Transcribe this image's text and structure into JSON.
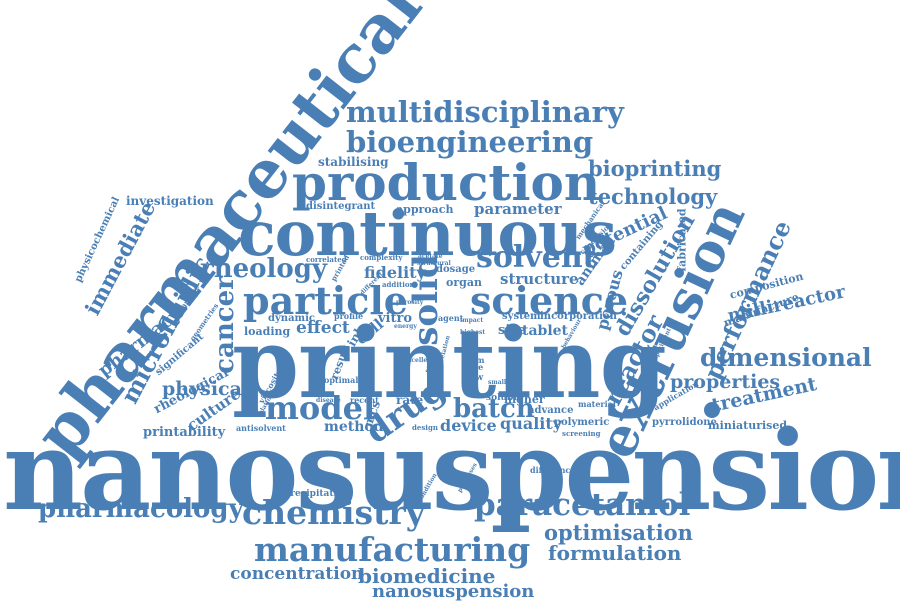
{
  "color": "#4a7fb5",
  "words": {
    "nanosuspensions": "nanosuspensions",
    "printing": "printing",
    "pharmaceutical": "pharmaceutical",
    "continuous": "continuous",
    "production": "production",
    "extrusion": "extrusion",
    "particle": "particle",
    "science": "science",
    "multidisciplinary": "multidisciplinary",
    "bioengineering": "bioengineering",
    "manufacturing": "manufacturing",
    "chemistry": "chemistry",
    "paracetamol": "paracetamol",
    "pharmacology": "pharmacology",
    "solid": "solid",
    "solvent": "solvent",
    "rheology": "rheology",
    "drug": "drug",
    "batch": "batch",
    "model": "model",
    "cancer": "cancer",
    "microfluidic": "microfluidic",
    "immediate": "immediate",
    "pharmacy": "pharmacy",
    "reactor": "reactor",
    "performance": "performance",
    "dissolution": "dissolution",
    "dimensional": "dimensional",
    "bioprinting": "bioprinting",
    "technology": "technology",
    "potential": "potential",
    "parameter": "parameter",
    "optimisation": "optimisation",
    "formulation": "formulation",
    "biomedicine": "biomedicine",
    "nanosuspension": "nanosuspension",
    "concentration": "concentration",
    "properties": "properties",
    "treatment": "treatment",
    "millireactor": "millireactor",
    "physical": "physical",
    "porous": "porous",
    "fidelity": "fidelity",
    "structure": "structure",
    "effect": "effect",
    "quality": "quality",
    "device": "device",
    "tablet": "tablet",
    "animal": "animal",
    "method": "method",
    "culture": "culture",
    "rheological": "rheological",
    "printability": "printability",
    "stabilising": "stabilising",
    "investigation": "investigation",
    "physicochemical": "physicochemical",
    "composition": "composition",
    "manufacture": "manufacture",
    "miniaturised": "miniaturised",
    "pyrrolidone": "pyrrolidone",
    "precipitation": "precipitation",
    "approach": "approach",
    "disintegrant": "disintegrant",
    "significant": "significant",
    "loading": "loading",
    "dynamic": "dynamic",
    "cell": "cell",
    "vitro": "vitro",
    "organ": "organ",
    "dosage": "dosage",
    "rate": "rate",
    "size": "size",
    "system": "system",
    "incorporation": "incorporation",
    "higher": "higher",
    "advance": "advance",
    "polymeric": "polymeric",
    "antisolvent": "antisolvent",
    "design": "design",
    "screening": "screening",
    "difference": "difference",
    "material": "material",
    "soluble": "soluble",
    "fabricated": "fabricated",
    "containing": "containing",
    "ink": "ink",
    "result": "result",
    "recent": "recent",
    "optimal": "optimal",
    "viscosity": "viscosity",
    "profile": "profile",
    "agent": "agent",
    "flow": "flow",
    "pore": "pore",
    "line": "line",
    "form": "form",
    "advantage": "advantage",
    "geometries": "geometries",
    "correlated": "correlated",
    "complexity": "complexity",
    "addition": "addition",
    "printed": "printed",
    "platform": "platform",
    "experiment": "experiment",
    "application": "application",
    "conclusion": "conclusion",
    "mechanical": "mechanical",
    "acetate": "acetate",
    "structural": "structural",
    "disease": "disease",
    "energy": "energy",
    "processes": "processes",
    "condition": "condition",
    "behaviour": "behaviour",
    "porosity": "porosity",
    "different": "different",
    "highest": "highest",
    "impact": "impact",
    "mcs": "mcs",
    "smaller": "smaller",
    "excellent": "excellent",
    "stable": "stable",
    "correlation": "correlation"
  }
}
